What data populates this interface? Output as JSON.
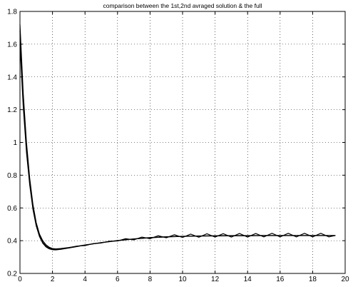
{
  "chart_data": {
    "type": "line",
    "title": "comparison between the 1st,2nd avraged solution & the full",
    "xlabel": "",
    "ylabel": "",
    "xlim": [
      0,
      20
    ],
    "ylim": [
      0.2,
      1.8
    ],
    "grid": true,
    "x_ticks": [
      0,
      2,
      4,
      6,
      8,
      10,
      12,
      14,
      16,
      18,
      20
    ],
    "y_ticks": [
      0.2,
      0.4,
      0.6,
      0.8,
      1,
      1.2,
      1.4,
      1.6,
      1.8
    ],
    "x_tick_labels": [
      "0",
      "2",
      "4",
      "6",
      "8",
      "10",
      "12",
      "14",
      "16",
      "18",
      "20"
    ],
    "y_tick_labels": [
      "0.2",
      "0.4",
      "0.6",
      "0.8",
      "1",
      "1.2",
      "1.4",
      "1.6",
      "1.8"
    ],
    "color": "#000000",
    "series": [
      {
        "x": [
          0,
          0.2,
          0.4,
          0.6,
          0.8,
          1.0,
          1.2,
          1.4,
          1.6,
          1.8,
          2.0,
          2.2,
          2.5,
          3.0,
          3.5,
          4.0,
          5.0,
          6.0,
          7.0,
          8.0,
          9.0,
          10.0,
          11.0,
          12.0,
          13.0,
          14.0,
          15.0,
          16.0,
          17.0,
          18.0,
          19.0,
          19.4
        ],
        "y": [
          1.72,
          1.3,
          1.0,
          0.78,
          0.62,
          0.51,
          0.44,
          0.4,
          0.375,
          0.36,
          0.352,
          0.35,
          0.352,
          0.358,
          0.366,
          0.374,
          0.388,
          0.4,
          0.41,
          0.418,
          0.423,
          0.426,
          0.428,
          0.429,
          0.43,
          0.43,
          0.431,
          0.431,
          0.431,
          0.431,
          0.431,
          0.431
        ]
      },
      {
        "x": [
          0,
          0.2,
          0.4,
          0.6,
          0.8,
          1.0,
          1.2,
          1.4,
          1.6,
          1.8,
          2.0,
          2.2,
          2.5,
          3.0,
          3.5,
          4.0,
          5.0,
          6.0,
          7.0,
          8.0,
          9.0,
          10.0,
          11.0,
          12.0,
          13.0,
          14.0,
          15.0,
          16.0,
          17.0,
          18.0,
          19.0,
          19.4
        ],
        "y": [
          1.6,
          1.22,
          0.94,
          0.74,
          0.59,
          0.49,
          0.425,
          0.385,
          0.362,
          0.35,
          0.345,
          0.344,
          0.347,
          0.355,
          0.364,
          0.373,
          0.388,
          0.401,
          0.411,
          0.419,
          0.424,
          0.427,
          0.429,
          0.43,
          0.431,
          0.431,
          0.432,
          0.432,
          0.432,
          0.432,
          0.432,
          0.432
        ]
      },
      {
        "x": [
          0,
          0.2,
          0.4,
          0.6,
          0.8,
          1.0,
          1.2,
          1.4,
          1.6,
          1.8,
          2.0,
          2.2,
          2.5,
          3.0,
          3.5,
          4.0,
          4.5,
          5.0,
          5.5,
          6.0,
          6.5,
          7.0,
          7.5,
          8.0,
          8.5,
          9.0,
          9.5,
          10.0,
          10.5,
          11.0,
          11.5,
          12.0,
          12.5,
          13.0,
          13.5,
          14.0,
          14.5,
          15.0,
          15.5,
          16.0,
          16.5,
          17.0,
          17.5,
          18.0,
          18.5,
          19.0,
          19.4
        ],
        "y": [
          1.68,
          1.27,
          0.97,
          0.76,
          0.6,
          0.5,
          0.435,
          0.39,
          0.367,
          0.355,
          0.348,
          0.347,
          0.35,
          0.357,
          0.367,
          0.37,
          0.382,
          0.386,
          0.397,
          0.398,
          0.412,
          0.405,
          0.422,
          0.412,
          0.43,
          0.418,
          0.436,
          0.42,
          0.44,
          0.421,
          0.442,
          0.422,
          0.443,
          0.422,
          0.444,
          0.422,
          0.444,
          0.423,
          0.445,
          0.423,
          0.445,
          0.423,
          0.445,
          0.423,
          0.445,
          0.423,
          0.432
        ]
      }
    ]
  }
}
